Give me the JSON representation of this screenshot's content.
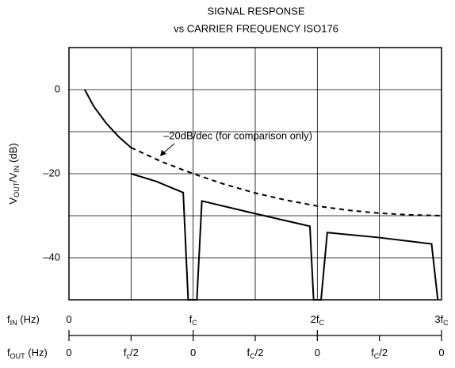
{
  "chart_data": {
    "type": "line",
    "title": "SIGNAL RESPONSE",
    "subtitle": "vs CARRIER FREQUENCY ISO176",
    "annotation": "–20dB/dec (for comparison only)",
    "ylabel": [
      "V",
      "OUT",
      "/V",
      "IN",
      " (dB)"
    ],
    "xlabel": [
      "f",
      "IN",
      " (Hz)"
    ],
    "x2label": [
      "f",
      "OUT",
      " (Hz)"
    ],
    "xlim": [
      0,
      3
    ],
    "ylim": [
      -50,
      10
    ],
    "yticks": [
      {
        "value": -40,
        "label": "–40"
      },
      {
        "value": -20,
        "label": "–20"
      },
      0
    ],
    "yminor": [
      -30,
      -10
    ],
    "xgrid": [
      0.5,
      1,
      1.5,
      2,
      2.5
    ],
    "xticks": [
      {
        "value": 0,
        "label": "0"
      },
      {
        "value": 1,
        "label": "f",
        "sub": "C"
      },
      {
        "value": 2,
        "label": "2f",
        "sub": "C"
      },
      {
        "value": 3,
        "label": "3f",
        "sub": "C"
      }
    ],
    "x2ticks": [
      {
        "value": 0,
        "label": "0"
      },
      {
        "value": 0.5,
        "label": "f",
        "sub": "c",
        "suffix": "/2"
      },
      {
        "value": 1,
        "label": "0"
      },
      {
        "value": 1.5,
        "label": "f",
        "sub": "C",
        "suffix": "/2"
      },
      {
        "value": 2,
        "label": "0"
      },
      {
        "value": 2.5,
        "label": "f",
        "sub": "C",
        "suffix": "/2"
      },
      {
        "value": 3,
        "label": "0"
      }
    ],
    "series": [
      {
        "color": "#000000",
        "style": "solid",
        "x": [
          0.127,
          0.2,
          0.3,
          0.4,
          0.5,
          null,
          0.5,
          0.7,
          0.92,
          0.96,
          1.03,
          1.07,
          1.5,
          1.94,
          1.97,
          2.03,
          2.08,
          2.5,
          2.92,
          2.97
        ],
        "values": [
          0,
          -4,
          -8,
          -11.2,
          -13.8,
          null,
          -20,
          -21.8,
          -24.5,
          -50,
          -50,
          -26.5,
          -29.5,
          -32.5,
          -50,
          -50,
          -34,
          -35.2,
          -36.7,
          -50
        ]
      },
      {
        "color": "#000000",
        "style": "dashed",
        "x": [
          0.5,
          0.75,
          1,
          1.25,
          1.5,
          1.75,
          2,
          2.25,
          2.5,
          2.75,
          3
        ],
        "values": [
          -13.8,
          -17.2,
          -20,
          -22.5,
          -24.6,
          -26.3,
          -27.7,
          -28.7,
          -29.4,
          -29.8,
          -30
        ]
      }
    ]
  }
}
